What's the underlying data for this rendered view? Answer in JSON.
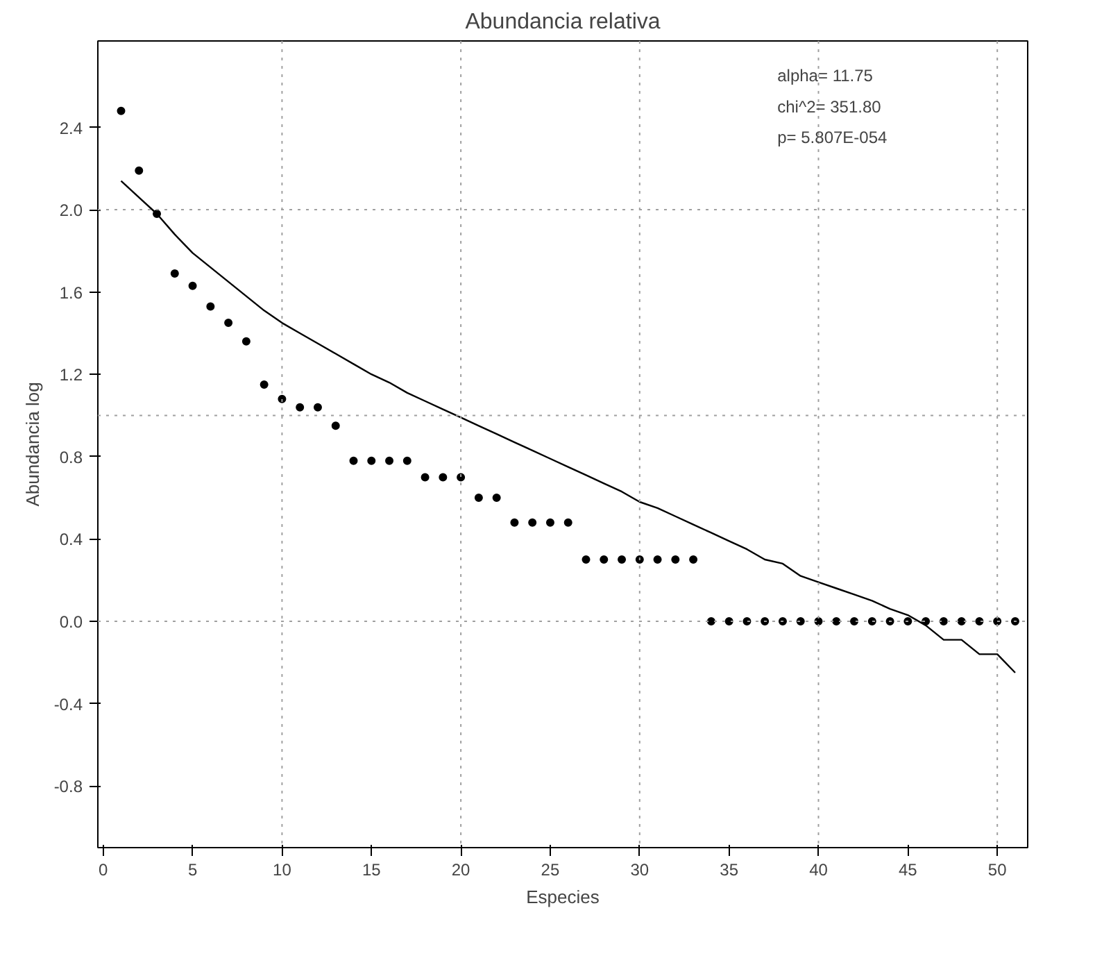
{
  "chart_data": {
    "type": "scatter",
    "title": "Abundancia relativa",
    "xlabel": "Especies",
    "ylabel": "Abundancia log",
    "xlim": [
      -0.3,
      51.7
    ],
    "ylim": [
      -1.1,
      2.82
    ],
    "xticks": [
      0,
      5,
      10,
      15,
      20,
      25,
      30,
      35,
      40,
      45,
      50
    ],
    "yticks": [
      {
        "value": -0.8,
        "label": "-0.8"
      },
      {
        "value": -0.4,
        "label": "-0.4"
      },
      {
        "value": 0,
        "label": "0.0"
      },
      {
        "value": 0.4,
        "label": "0.4"
      },
      {
        "value": 0.8,
        "label": "0.8"
      },
      {
        "value": 1.2,
        "label": "1.2"
      },
      {
        "value": 1.6,
        "label": "1.6"
      },
      {
        "value": 2.0,
        "label": "2.0"
      },
      {
        "value": 2.4,
        "label": "2.4"
      }
    ],
    "grid": false,
    "marker": "circle",
    "ref_lines": [
      {
        "axis": "x",
        "value": 10,
        "color": "#a0a0a0",
        "line_style": "dotted"
      },
      {
        "axis": "x",
        "value": 20,
        "color": "#a0a0a0",
        "line_style": "dotted"
      },
      {
        "axis": "x",
        "value": 30,
        "color": "#a0a0a0",
        "line_style": "dotted"
      },
      {
        "axis": "x",
        "value": 40,
        "color": "#a0a0a0",
        "line_style": "dotted"
      },
      {
        "axis": "x",
        "value": 50,
        "color": "#a0a0a0",
        "line_style": "dotted"
      },
      {
        "axis": "y",
        "value": 0,
        "color": "#a0a0a0",
        "line_style": "dotted"
      },
      {
        "axis": "y",
        "value": 1,
        "color": "#a0a0a0",
        "line_style": "dotted"
      },
      {
        "axis": "y",
        "value": 2,
        "color": "#a0a0a0",
        "line_style": "dotted"
      }
    ],
    "annotations": [
      "alpha= 11.75",
      "chi^2= 351.80",
      "p= 5.807E-054"
    ],
    "series": [
      {
        "color": "#000000",
        "x": [
          1,
          2,
          3,
          4,
          5,
          6,
          7,
          8,
          9,
          10,
          11,
          12,
          13,
          14,
          15,
          16,
          17,
          18,
          19,
          20,
          21,
          22,
          23,
          24,
          25,
          26,
          27,
          28,
          29,
          30,
          31,
          32,
          33,
          34,
          35,
          36,
          37,
          38,
          39,
          40,
          41,
          42,
          43,
          44,
          45,
          46,
          47,
          48,
          49,
          50,
          51
        ],
        "values": [
          2.48,
          2.19,
          1.98,
          1.69,
          1.63,
          1.53,
          1.45,
          1.36,
          1.15,
          1.08,
          1.04,
          1.04,
          0.95,
          0.78,
          0.78,
          0.78,
          0.78,
          0.7,
          0.7,
          0.7,
          0.6,
          0.6,
          0.48,
          0.48,
          0.48,
          0.48,
          0.3,
          0.3,
          0.3,
          0.3,
          0.3,
          0.3,
          0.3,
          0,
          0,
          0,
          0,
          0,
          0,
          0,
          0,
          0,
          0,
          0,
          0,
          0,
          0,
          0,
          0,
          0,
          0
        ]
      },
      {
        "type": "line",
        "color": "#000000",
        "marker": "none",
        "line_style": "solid",
        "x": [
          1,
          2,
          3,
          4,
          5,
          6,
          7,
          8,
          9,
          10,
          11,
          12,
          13,
          14,
          15,
          16,
          17,
          18,
          19,
          20,
          21,
          22,
          23,
          24,
          25,
          26,
          27,
          28,
          29,
          30,
          31,
          32,
          33,
          34,
          35,
          36,
          37,
          38,
          39,
          40,
          41,
          42,
          43,
          44,
          45,
          46,
          47,
          48,
          49,
          50,
          51
        ],
        "values": [
          2.14,
          2.06,
          1.98,
          1.88,
          1.79,
          1.72,
          1.65,
          1.58,
          1.51,
          1.45,
          1.4,
          1.35,
          1.3,
          1.25,
          1.2,
          1.16,
          1.11,
          1.07,
          1.03,
          0.99,
          0.95,
          0.91,
          0.87,
          0.83,
          0.79,
          0.75,
          0.71,
          0.67,
          0.63,
          0.58,
          0.55,
          0.51,
          0.47,
          0.43,
          0.39,
          0.35,
          0.3,
          0.28,
          0.22,
          0.19,
          0.16,
          0.13,
          0.1,
          0.06,
          0.03,
          -0.02,
          -0.09,
          -0.09,
          -0.16,
          -0.16,
          -0.25
        ]
      }
    ]
  }
}
